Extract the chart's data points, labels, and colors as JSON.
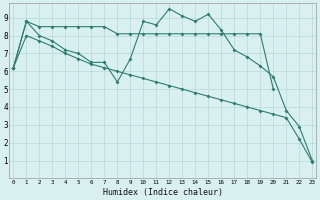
{
  "line1_x": [
    0,
    1,
    2,
    3,
    4,
    5,
    6,
    7,
    8,
    9,
    10,
    11,
    12,
    13,
    14,
    15,
    16,
    17,
    18,
    19,
    20
  ],
  "line1_y": [
    6.2,
    8.8,
    8.5,
    8.5,
    8.5,
    8.5,
    8.5,
    8.5,
    8.1,
    8.1,
    8.1,
    8.1,
    8.1,
    8.1,
    8.1,
    8.1,
    8.1,
    8.1,
    8.1,
    8.1,
    5.0
  ],
  "line2_x": [
    0,
    1,
    2,
    3,
    4,
    5,
    6,
    7,
    8,
    9,
    10,
    11,
    12,
    13,
    14,
    15,
    16,
    17,
    18,
    19,
    20,
    21,
    22,
    23
  ],
  "line2_y": [
    6.2,
    8.8,
    8.0,
    7.7,
    7.2,
    7.0,
    6.5,
    6.5,
    5.4,
    6.7,
    8.8,
    8.6,
    9.5,
    9.1,
    8.8,
    9.2,
    8.3,
    7.2,
    6.8,
    6.3,
    5.7,
    3.8,
    2.9,
    1.0
  ],
  "line3_x": [
    0,
    1,
    2,
    3,
    4,
    5,
    6,
    7,
    8,
    9,
    10,
    11,
    12,
    13,
    14,
    15,
    16,
    17,
    18,
    19,
    20,
    21,
    22,
    23
  ],
  "line3_y": [
    6.2,
    8.0,
    7.7,
    7.4,
    7.0,
    6.7,
    6.4,
    6.2,
    6.0,
    5.8,
    5.6,
    5.4,
    5.2,
    5.0,
    4.8,
    4.6,
    4.4,
    4.2,
    4.0,
    3.8,
    3.6,
    3.4,
    2.2,
    0.9
  ],
  "bg_color": "#d8f0f0",
  "grid_color": "#b8d8d8",
  "line_color": "#2e7d6e",
  "xlabel": "Humidex (Indice chaleur)",
  "ylim": [
    0,
    9.8
  ],
  "xlim": [
    -0.3,
    23.3
  ],
  "yticks": [
    1,
    2,
    3,
    4,
    5,
    6,
    7,
    8,
    9
  ],
  "xticks": [
    0,
    1,
    2,
    3,
    4,
    5,
    6,
    7,
    8,
    9,
    10,
    11,
    12,
    13,
    14,
    15,
    16,
    17,
    18,
    19,
    20,
    21,
    22,
    23
  ]
}
